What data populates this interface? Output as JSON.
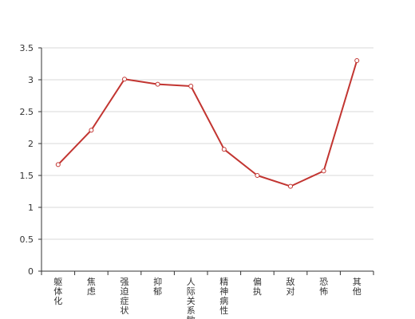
{
  "chart_data": {
    "type": "line",
    "categories": [
      "躯体化",
      "焦虑",
      "强迫症状",
      "抑郁",
      "人际关系敏感",
      "精神病性",
      "偏执",
      "敌对",
      "恐怖",
      "其他"
    ],
    "series": [
      {
        "values": [
          1.67,
          2.21,
          3.01,
          2.93,
          2.9,
          1.91,
          1.5,
          1.33,
          1.57,
          3.3
        ],
        "color": "#c23531"
      }
    ],
    "y_ticks": [
      "0",
      "0.5",
      "1",
      "1.5",
      "2",
      "2.5",
      "3",
      "3.5"
    ],
    "ylim": [
      0,
      3.5
    ],
    "grid": true,
    "legend": "none",
    "title": "",
    "xlabel": "",
    "ylabel": ""
  }
}
